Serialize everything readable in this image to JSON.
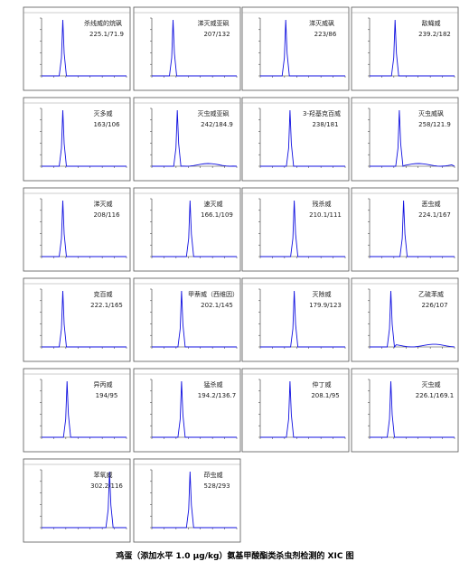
{
  "panels": [
    {
      "name": "杀线威的烷砜",
      "transition": "225.1/71.9"
    },
    {
      "name": "涕灭威亚砜",
      "transition": "207/132"
    },
    {
      "name": "涕灭威砜",
      "transition": "223/86"
    },
    {
      "name": "敌蝇威",
      "transition": "239.2/182"
    },
    {
      "name": "灭多威",
      "transition": "163/106"
    },
    {
      "name": "灭虫威亚砜",
      "transition": "242/184.9"
    },
    {
      "name": "3-羟基克百威",
      "transition": "238/181"
    },
    {
      "name": "灭虫威砜",
      "transition": "258/121.9"
    },
    {
      "name": "涕灭威",
      "transition": "208/116"
    },
    {
      "name": "速灭威",
      "transition": "166.1/109"
    },
    {
      "name": "残杀威",
      "transition": "210.1/111"
    },
    {
      "name": "恶虫威",
      "transition": "224.1/167"
    },
    {
      "name": "克百威",
      "transition": "222.1/165"
    },
    {
      "name": "甲萘威（西维因）",
      "transition": "202.1/145"
    },
    {
      "name": "灭除威",
      "transition": "179.9/123"
    },
    {
      "name": "乙硫苯威",
      "transition": "226/107"
    },
    {
      "name": "异丙威",
      "transition": "194/95"
    },
    {
      "name": "猛杀威",
      "transition": "194.2/136.7"
    },
    {
      "name": "仲丁威",
      "transition": "208.1/95"
    },
    {
      "name": "灭虫威",
      "transition": "226.1/169.1"
    },
    {
      "name": "苯氧威",
      "transition": "302.2/116"
    },
    {
      "name": "茚虫威",
      "transition": "528/293"
    }
  ],
  "caption": "鸡蛋（添加水平 1.0 μg/kg）氨基甲酸酯类杀虫剂检测的 XIC 图"
}
